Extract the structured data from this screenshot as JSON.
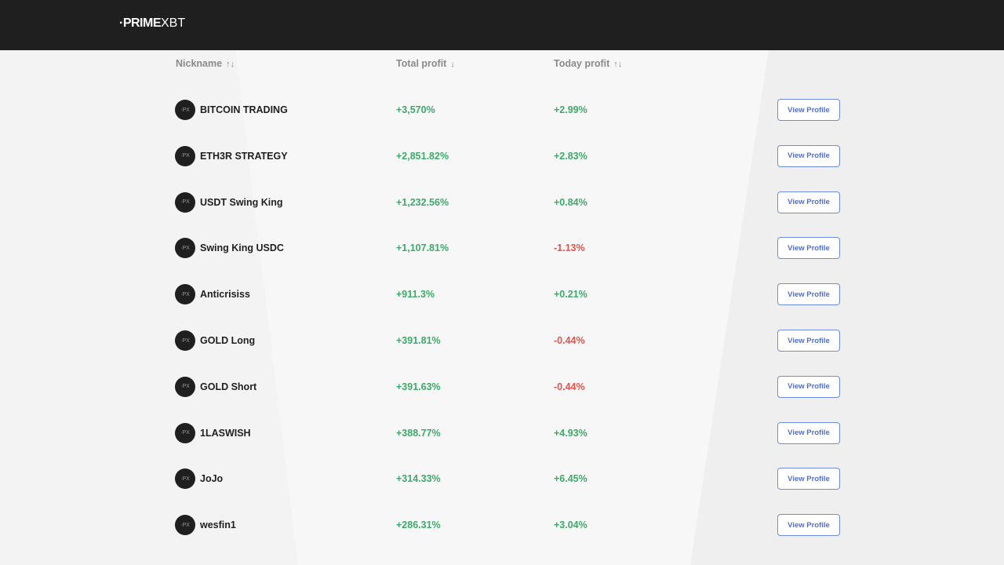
{
  "brand": {
    "logo_text_1": "·PRIME",
    "logo_text_2": "XBT"
  },
  "table": {
    "headers": [
      {
        "label": "Nickname",
        "sort_icon": "↑↓"
      },
      {
        "label": "Total profit",
        "sort_icon": "↓"
      },
      {
        "label": "Today profit",
        "sort_icon": "↑↓"
      }
    ],
    "avatar_text": "·PX",
    "button_label": "View Profile",
    "rows": [
      {
        "name": "BITCOIN TRADING",
        "total": "+3,570%",
        "today": "+2.99%",
        "today_sign": "pos"
      },
      {
        "name": "ETH3R STRATEGY",
        "total": "+2,851.82%",
        "today": "+2.83%",
        "today_sign": "pos"
      },
      {
        "name": "USDT Swing King",
        "total": "+1,232.56%",
        "today": "+0.84%",
        "today_sign": "pos"
      },
      {
        "name": "Swing King USDC",
        "total": "+1,107.81%",
        "today": "-1.13%",
        "today_sign": "neg"
      },
      {
        "name": "Anticrisiss",
        "total": "+911.3%",
        "today": "+0.21%",
        "today_sign": "pos"
      },
      {
        "name": "GOLD Long",
        "total": "+391.81%",
        "today": "-0.44%",
        "today_sign": "neg"
      },
      {
        "name": "GOLD Short",
        "total": "+391.63%",
        "today": "-0.44%",
        "today_sign": "neg"
      },
      {
        "name": "1LASWISH",
        "total": "+388.77%",
        "today": "+4.93%",
        "today_sign": "pos"
      },
      {
        "name": "JoJo",
        "total": "+314.33%",
        "today": "+6.45%",
        "today_sign": "pos"
      },
      {
        "name": "wesfin1",
        "total": "+286.31%",
        "today": "+3.04%",
        "today_sign": "pos"
      }
    ]
  },
  "colors": {
    "positive": "#3daa6a",
    "negative": "#e5534b",
    "accent": "#4f6fd8",
    "header_bg": "#1f1f1f"
  }
}
